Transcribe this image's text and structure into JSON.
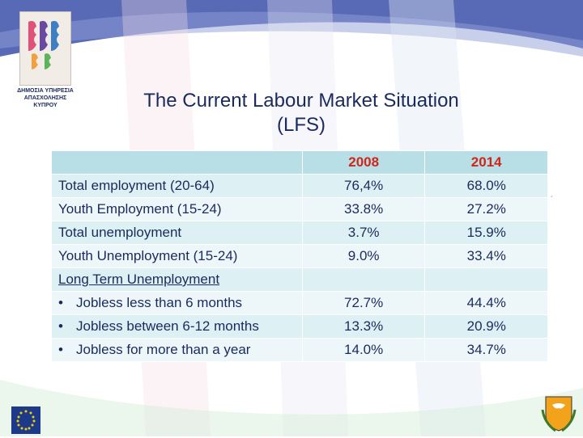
{
  "logo": {
    "text": "ΔΗΜΟΣΙΑ ΥΠΗΡΕΣΙΑ ΑΠΑΣΧΟΛΗΣΗΣ ΚΥΠΡΟΥ"
  },
  "title": {
    "line1": "The Current Labour Market Situation",
    "line2": "(LFS)"
  },
  "table": {
    "headers": [
      "",
      "2008",
      "2014"
    ],
    "rows": [
      {
        "label": "Total employment (20-64)",
        "v2008": "76,4%",
        "v2014": "68.0%"
      },
      {
        "label": "Youth Employment (15-24)",
        "v2008": "33.8%",
        "v2014": "27.2%"
      },
      {
        "label": "Total unemployment",
        "v2008": "3.7%",
        "v2014": "15.9%"
      },
      {
        "label": "Youth Unemployment (15-24)",
        "v2008": "9.0%",
        "v2014": "33.4%"
      },
      {
        "label": "Long Term Unemployment",
        "v2008": "",
        "v2014": ""
      },
      {
        "label": "Jobless less than 6 months",
        "v2008": "72.7%",
        "v2014": "44.4%"
      },
      {
        "label": "Jobless between 6-12 months",
        "v2008": "13.3%",
        "v2014": "20.9%"
      },
      {
        "label": "Jobless for more than a year",
        "v2008": "14.0%",
        "v2014": "34.7%"
      }
    ],
    "bullet": "•"
  },
  "colors": {
    "title": "#1a2a5e",
    "header_text": "#d0261a",
    "header_bg": "#b9dfe6",
    "row_bg_a": "#ddf0f3",
    "row_bg_b": "#edf7f9",
    "band_blue": "#3b4fa8"
  },
  "icons": {
    "eu_flag": "eu-flag-icon",
    "coat_of_arms": "cyprus-coat-of-arms-icon"
  }
}
